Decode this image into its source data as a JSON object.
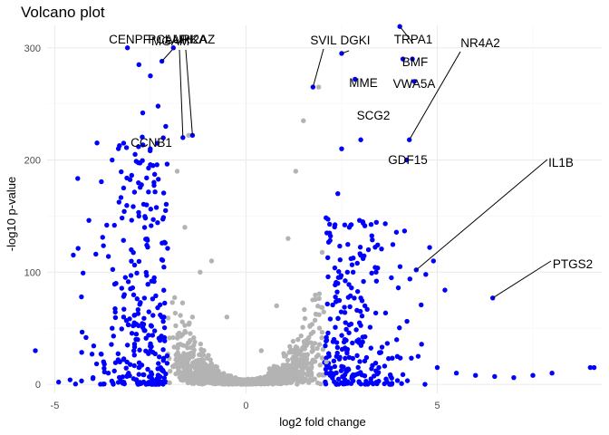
{
  "chart_data": {
    "type": "scatter",
    "title": "Volcano plot",
    "xlabel": "log2 fold change",
    "ylabel": "-log10 p-value",
    "xlim": [
      -5.2,
      9.3
    ],
    "ylim": [
      -8,
      320
    ],
    "xticks": [
      -5,
      0,
      5
    ],
    "yticks": [
      0,
      100,
      200,
      300
    ],
    "grid": true,
    "legend": "none",
    "colors": {
      "significant": "#0000ff",
      "not_significant": "#b3b3b3",
      "label_line": "#000000"
    },
    "series": [
      {
        "color_key": "not_significant",
        "points": [
          [
            -2,
            1.4
          ],
          [
            -1.7,
            25
          ],
          [
            -1.4,
            60
          ],
          [
            -1.2,
            100
          ],
          [
            -1.6,
            140
          ],
          [
            -1.8,
            190
          ],
          [
            -1.5,
            222
          ],
          [
            -0.9,
            110
          ],
          [
            -0.5,
            60
          ],
          [
            0.4,
            30
          ],
          [
            0.8,
            70
          ],
          [
            1.1,
            130
          ],
          [
            1.3,
            190
          ],
          [
            1.5,
            235
          ],
          [
            1.9,
            265
          ],
          [
            1.7,
            45
          ],
          [
            2.1,
            20
          ],
          [
            -1,
            8
          ],
          [
            0.2,
            4
          ]
        ]
      },
      {
        "color_key": "significant",
        "points": [
          [
            -4.9,
            2
          ],
          [
            -4.6,
            4
          ],
          [
            -4.3,
            3
          ],
          [
            -4,
            6
          ],
          [
            -3.6,
            10
          ],
          [
            -3.3,
            20
          ],
          [
            -3.1,
            35
          ],
          [
            -3.5,
            50
          ],
          [
            -3.2,
            60
          ],
          [
            -3.4,
            90
          ],
          [
            -3,
            120
          ],
          [
            -2.8,
            150
          ],
          [
            -3.2,
            175
          ],
          [
            -3.5,
            200
          ],
          [
            -2.9,
            205
          ],
          [
            -3.1,
            300
          ],
          [
            -2.7,
            242
          ],
          [
            -2.5,
            275
          ],
          [
            -2.3,
            248
          ],
          [
            -2.6,
            160
          ],
          [
            -2.4,
            95
          ],
          [
            -2.2,
            60
          ],
          [
            -2.5,
            30
          ],
          [
            -2.8,
            15
          ],
          [
            2.2,
            8
          ],
          [
            2.5,
            16
          ],
          [
            2.7,
            24
          ],
          [
            2.3,
            40
          ],
          [
            2.6,
            55
          ],
          [
            2.9,
            66
          ],
          [
            2.4,
            90
          ],
          [
            2.8,
            100
          ],
          [
            3,
            115
          ],
          [
            2.7,
            140
          ],
          [
            2.4,
            170
          ],
          [
            2.5,
            210
          ],
          [
            3.2,
            120
          ],
          [
            3.4,
            100
          ],
          [
            3.8,
            95
          ],
          [
            4.5,
            25
          ],
          [
            5,
            15
          ],
          [
            5.5,
            10
          ],
          [
            6,
            8
          ],
          [
            6.5,
            7
          ],
          [
            7,
            6
          ],
          [
            7.5,
            8
          ],
          [
            8,
            10
          ],
          [
            9,
            15
          ],
          [
            9.1,
            15
          ],
          [
            4.7,
            98
          ],
          [
            4.8,
            122
          ],
          [
            4.9,
            110
          ],
          [
            5.2,
            84
          ],
          [
            4.1,
            290
          ]
        ]
      }
    ],
    "labeled_points": [
      {
        "gene": "NR4A2",
        "x": 4.27,
        "y": 218
      },
      {
        "gene": "IL1B",
        "x": 4.45,
        "y": 102
      },
      {
        "gene": "PTGS2",
        "x": 6.45,
        "y": 77
      },
      {
        "gene": "TRPA1",
        "x": 4.02,
        "y": 320
      },
      {
        "gene": "BMF",
        "x": 4.35,
        "y": 290
      },
      {
        "gene": "VWA5A",
        "x": 4.4,
        "y": 270
      },
      {
        "gene": "GDF15",
        "x": 4.2,
        "y": 200
      },
      {
        "gene": "MME",
        "x": 2.85,
        "y": 272
      },
      {
        "gene": "SCG2",
        "x": 3.0,
        "y": 218
      },
      {
        "gene": "SVIL",
        "x": 1.75,
        "y": 265
      },
      {
        "gene": "DGKI",
        "x": 2.5,
        "y": 295
      },
      {
        "gene": "CENPF",
        "x": -2.8,
        "y": 285
      },
      {
        "gene": "PCLAF",
        "x": -2.2,
        "y": 288
      },
      {
        "gene": "MGAM",
        "x": -1.9,
        "y": 300
      },
      {
        "gene": "AURKA",
        "x": -1.65,
        "y": 220
      },
      {
        "gene": "H2AZ",
        "x": -1.4,
        "y": 222
      },
      {
        "gene": "CCNB1",
        "x": -3.2,
        "y": 215
      }
    ],
    "labels": [
      "NR4A2",
      "IL1B",
      "PTGS2",
      "TRPA1",
      "BMF",
      "VWA5A",
      "GDF15",
      "MME",
      "SCG2",
      "SVIL",
      "DGKI",
      "CENPF",
      "PCLAF",
      "MGAM",
      "AURKA",
      "H2AZ",
      "CCNB1"
    ]
  }
}
